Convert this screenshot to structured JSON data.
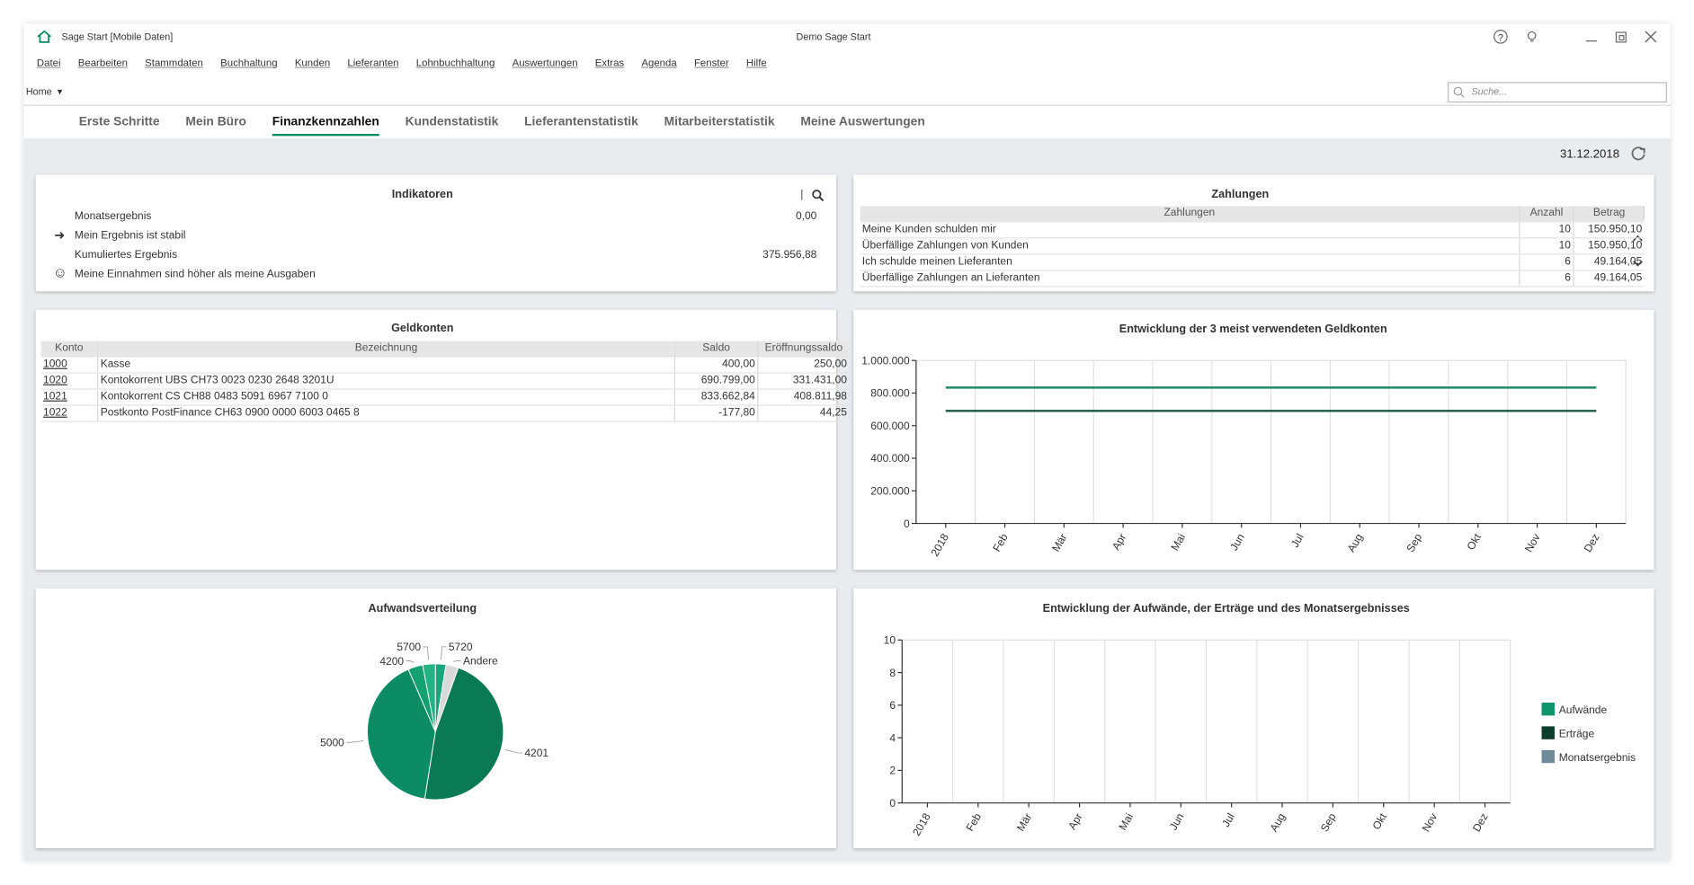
{
  "window": {
    "title": "Sage Start [Mobile Daten]",
    "center_title": "Demo Sage Start"
  },
  "menu": [
    "Datei",
    "Bearbeiten",
    "Stammdaten",
    "Buchhaltung",
    "Kunden",
    "Lieferanten",
    "Lohnbuchhaltung",
    "Auswertungen",
    "Extras",
    "Agenda",
    "Fenster",
    "Hilfe"
  ],
  "home": "Home",
  "search_placeholder": "Suche...",
  "tabs": [
    "Erste Schritte",
    "Mein Büro",
    "Finanzkennzahlen",
    "Kundenstatistik",
    "Lieferantenstatistik",
    "Mitarbeiterstatistik",
    "Meine Auswertungen"
  ],
  "active_tab": 2,
  "date": "31.12.2018",
  "indikatoren": {
    "title": "Indikatoren",
    "rows": [
      {
        "label": "Monatsergebnis",
        "value": "0,00"
      },
      {
        "label": "Mein Ergebnis ist stabil"
      },
      {
        "label": "Kumuliertes Ergebnis",
        "value": "375.956,88"
      },
      {
        "label": "Meine Einnahmen sind höher als meine Ausgaben"
      }
    ]
  },
  "zahlungen": {
    "title": "Zahlungen",
    "columns": [
      "Zahlungen",
      "Anzahl",
      "Betrag"
    ],
    "rows": [
      [
        "Meine Kunden schulden mir",
        10,
        "150.950,10"
      ],
      [
        "Überfällige Zahlungen von Kunden",
        10,
        "150.950,10"
      ],
      [
        "Ich schulde meinen Lieferanten",
        6,
        "49.164,05"
      ],
      [
        "Überfällige Zahlungen an Lieferanten",
        6,
        "49.164,05"
      ]
    ]
  },
  "geldkonten": {
    "title": "Geldkonten",
    "columns": [
      "Konto",
      "Bezeichnung",
      "Saldo",
      "Eröffnungssaldo"
    ],
    "rows": [
      [
        "1000",
        "Kasse",
        "400,00",
        "250,00"
      ],
      [
        "1020",
        "Kontokorrent UBS CH73 0023 0230 2648 3201U",
        "690.799,00",
        "331.431,00"
      ],
      [
        "1021",
        "Kontokorrent CS CH88 0483 5091 6967 7100 0",
        "833.662,84",
        "408.811,98"
      ],
      [
        "1022",
        "Postkonto PostFinance CH63 0900 0000 6003 0465 8",
        "-177,80",
        "44,25"
      ]
    ]
  },
  "line_chart": {
    "type": "line",
    "title": "Entwicklung der 3 meist verwendeten Geldkonten",
    "categories": [
      "2018",
      "Feb",
      "Mär",
      "Apr",
      "Mai",
      "Jun",
      "Jul",
      "Aug",
      "Sep",
      "Okt",
      "Nov",
      "Dez"
    ],
    "ylim": [
      0,
      1000000
    ],
    "yticks": [
      0,
      {
        "value": 200000,
        "label": "200.000"
      },
      {
        "value": 400000,
        "label": "400.000"
      },
      {
        "value": 600000,
        "label": "600.000"
      },
      {
        "value": 800000,
        "label": "800.000"
      },
      {
        "value": 1000000,
        "label": "1.000.000"
      }
    ],
    "series": [
      {
        "color": "#1e8a63",
        "values": [
          833662.84,
          833662.84,
          833662.84,
          833662.84,
          833662.84,
          833662.84,
          833662.84,
          833662.84,
          833662.84,
          833662.84,
          833662.84,
          833662.84
        ]
      },
      {
        "color": "#1b5a43",
        "values": [
          690799,
          690799,
          690799,
          690799,
          690799,
          690799,
          690799,
          690799,
          690799,
          690799,
          690799,
          690799
        ]
      }
    ]
  },
  "pie_chart": {
    "type": "pie",
    "title": "Aufwandsverteilung",
    "categories": [
      "5720",
      "Andere",
      "4201",
      "5000",
      "4200",
      "5700"
    ],
    "values": [
      2.5,
      3,
      47,
      41,
      3.5,
      3
    ],
    "colors": [
      "#19a77a",
      "#d9d9d9",
      "#0a7a55",
      "#0b8c62",
      "#15a070",
      "#22b283"
    ]
  },
  "bar_chart": {
    "type": "bar",
    "title": "Entwicklung der Aufwände, der Erträge und des Monatsergebnisses",
    "categories": [
      "2018",
      "Feb",
      "Mär",
      "Apr",
      "Mai",
      "Jun",
      "Jul",
      "Aug",
      "Sep",
      "Okt",
      "Nov",
      "Dez"
    ],
    "ylim": [
      0,
      10
    ],
    "yticks": [
      0,
      2,
      4,
      6,
      8,
      10
    ],
    "legend": "right",
    "series": [
      {
        "name": "Aufwände",
        "color": "#10956b",
        "values": [
          0,
          0,
          0,
          0,
          0,
          0,
          0,
          0,
          0,
          0,
          0,
          0
        ]
      },
      {
        "name": "Erträge",
        "color": "#0d3d2d",
        "values": [
          0,
          0,
          0,
          0,
          0,
          0,
          0,
          0,
          0,
          0,
          0,
          0
        ]
      },
      {
        "name": "Monatsergebnis",
        "color": "#6f8a99",
        "values": [
          0,
          0,
          0,
          0,
          0,
          0,
          0,
          0,
          0,
          0,
          0,
          0
        ]
      }
    ]
  }
}
